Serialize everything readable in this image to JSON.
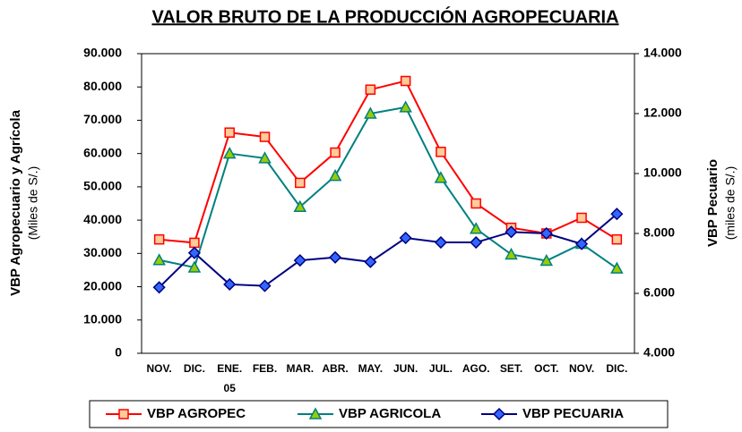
{
  "chart_data": {
    "type": "line",
    "title": "VALOR BRUTO DE LA PRODUCCIÓN AGROPECUARIA",
    "ylabel": "VBP Agropecuario y Agrícola",
    "ylabel_sub": "(Miles de S/.)",
    "y2label": "VBP Pecuario",
    "y2label_sub": "(miles de S/.)",
    "categories": [
      "NOV.",
      "DIC.",
      "ENE.\n05",
      "FEB.",
      "MAR.",
      "ABR.",
      "MAY.",
      "JUN.",
      "JUL.",
      "AGO.",
      "SET.",
      "OCT.",
      "NOV.",
      "DIC."
    ],
    "ylim": [
      0,
      90000
    ],
    "yticks": [
      0,
      {
        "value": 10000,
        "label": "10.000"
      },
      {
        "value": 20000,
        "label": "20.000"
      },
      {
        "value": 30000,
        "label": "30.000"
      },
      {
        "value": 40000,
        "label": "40.000"
      },
      {
        "value": 50000,
        "label": "50.000"
      },
      {
        "value": 60000,
        "label": "60.000"
      },
      {
        "value": 70000,
        "label": "70.000"
      },
      {
        "value": 80000,
        "label": "80.000"
      },
      {
        "value": 90000,
        "label": "90.000"
      }
    ],
    "y2lim": [
      4000,
      14000
    ],
    "y2ticks": [
      {
        "value": 4000,
        "label": "4.000"
      },
      {
        "value": 6000,
        "label": "6.000"
      },
      {
        "value": 8000,
        "label": "8.000"
      },
      {
        "value": 10000,
        "label": "10.000"
      },
      {
        "value": 12000,
        "label": "12.000"
      },
      {
        "value": 14000,
        "label": "14.000"
      }
    ],
    "legend": "bottom",
    "series": [
      {
        "name": "VBP AGROPEC",
        "color": "#ff0000",
        "marker": "square",
        "marker_fill": "#ffcc99",
        "values": [
          34200,
          33200,
          66300,
          65000,
          51200,
          60300,
          79200,
          81800,
          60500,
          45000,
          37700,
          36000,
          40700,
          34200
        ]
      },
      {
        "name": "VBP AGRICOLA",
        "color": "#008080",
        "marker": "triangle",
        "marker_fill": "#99cc00",
        "values": [
          28000,
          25800,
          60000,
          58600,
          44000,
          53300,
          72000,
          73900,
          52700,
          37400,
          29700,
          27800,
          32900,
          25500
        ]
      },
      {
        "name": "VBP PECUARIA",
        "color": "#000080",
        "marker": "diamond",
        "marker_fill": "#3366ff",
        "axis": "y2",
        "values": [
          6200,
          7350,
          6300,
          6250,
          7100,
          7200,
          7050,
          7850,
          7700,
          7700,
          8050,
          8000,
          7650,
          8650
        ]
      }
    ]
  }
}
